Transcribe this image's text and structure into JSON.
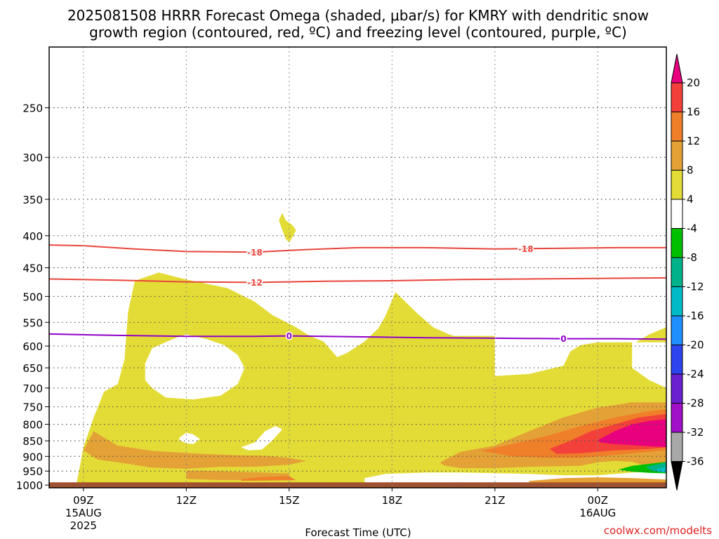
{
  "title": {
    "line1": "2025081508 HRRR Forecast Omega (shaded, μbar/s) for KMRY with dendritic snow",
    "line2": "growth region (contoured, red, ºC) and freezing level (contoured, purple, ºC)"
  },
  "credit": "coolwx.com/modelts",
  "chart_data": {
    "type": "heatmap",
    "title": "2025081508 HRRR Forecast Omega (shaded, μbar/s) for KMRY with dendritic snow growth region (contoured, red, ºC) and freezing level (contoured, purple, ºC)",
    "xlabel": "Forecast Time (UTC)",
    "ylabel": "",
    "x_ticks": [
      {
        "hour": 9,
        "label": "09Z",
        "sub1": "15AUG",
        "sub2": "2025"
      },
      {
        "hour": 12,
        "label": "12Z"
      },
      {
        "hour": 15,
        "label": "15Z"
      },
      {
        "hour": 18,
        "label": "18Z"
      },
      {
        "hour": 21,
        "label": "21Z"
      },
      {
        "hour": 24,
        "label": "00Z",
        "sub1": "16AUG"
      }
    ],
    "xlim": [
      8,
      26
    ],
    "y_ticks": [
      250,
      300,
      350,
      400,
      450,
      500,
      550,
      600,
      650,
      700,
      750,
      800,
      850,
      900,
      950,
      1000
    ],
    "ylim_hpa": [
      200,
      1010
    ],
    "y_scale": "log (pressure, decreasing upward)",
    "grid": true,
    "colorbar": {
      "labels": [
        "20",
        "16",
        "12",
        "8",
        "4",
        "-4",
        "-8",
        "-12",
        "-16",
        "-20",
        "-24",
        "-28",
        "-32",
        "-36"
      ],
      "bins": [
        {
          "range": ">20",
          "color": "#e8007e"
        },
        {
          "range": "16 to 20",
          "color": "#f4403a"
        },
        {
          "range": "12 to 16",
          "color": "#f07f2a"
        },
        {
          "range": "8 to 12",
          "color": "#e4a236"
        },
        {
          "range": "4 to 8",
          "color": "#e4dc36"
        },
        {
          "range": "-4 to 4",
          "color": "#ffffff"
        },
        {
          "range": "-8 to -4",
          "color": "#00c000"
        },
        {
          "range": "-12 to -8",
          "color": "#00b38a"
        },
        {
          "range": "-16 to -12",
          "color": "#00bcc8"
        },
        {
          "range": "-20 to -16",
          "color": "#1e90ff"
        },
        {
          "range": "-24 to -20",
          "color": "#2d44ee"
        },
        {
          "range": "-28 to -24",
          "color": "#6a1fd0"
        },
        {
          "range": "-32 to -28",
          "color": "#a10fc8"
        },
        {
          "range": "-36 to -32",
          "color": "#a8a8a8"
        },
        {
          "range": "<-36",
          "color": "#000000"
        }
      ]
    },
    "contours": [
      {
        "name": "-18",
        "color": "#e8453c",
        "label_text": "-18",
        "points": [
          [
            8.0,
            414
          ],
          [
            9.0,
            415
          ],
          [
            10.5,
            420
          ],
          [
            12.0,
            424
          ],
          [
            14.0,
            425
          ],
          [
            15.5,
            421
          ],
          [
            17.0,
            418
          ],
          [
            19.0,
            418
          ],
          [
            21.0,
            420
          ],
          [
            23.0,
            419
          ],
          [
            24.5,
            418
          ],
          [
            26.0,
            418
          ]
        ],
        "label_hours": [
          14.0,
          21.9
        ]
      },
      {
        "name": "-12",
        "color": "#e8453c",
        "label_text": "-12",
        "points": [
          [
            8.0,
            469
          ],
          [
            10.0,
            471
          ],
          [
            12.0,
            474
          ],
          [
            14.0,
            475
          ],
          [
            16.0,
            473
          ],
          [
            18.0,
            472
          ],
          [
            20.0,
            470
          ],
          [
            22.0,
            469
          ],
          [
            24.0,
            468
          ],
          [
            26.0,
            467
          ]
        ],
        "label_hours": [
          14.0
        ]
      },
      {
        "name": "freezing-level",
        "color": "#9000c8",
        "label_text": "0",
        "points": [
          [
            8.0,
            574
          ],
          [
            10.0,
            577
          ],
          [
            12.0,
            579
          ],
          [
            14.0,
            579
          ],
          [
            15.0,
            578
          ],
          [
            17.0,
            580
          ],
          [
            19.0,
            582
          ],
          [
            21.0,
            583
          ],
          [
            23.0,
            584
          ],
          [
            24.5,
            584
          ],
          [
            26.0,
            585
          ]
        ],
        "label_hours": [
          15.0,
          23.0
        ]
      }
    ],
    "regions": [
      {
        "level": "4 to 8",
        "color": "#e4dc36",
        "points": [
          [
            8.8,
            995
          ],
          [
            9.0,
            870
          ],
          [
            9.3,
            780
          ],
          [
            9.6,
            710
          ],
          [
            10.0,
            690
          ],
          [
            10.2,
            630
          ],
          [
            10.3,
            530
          ],
          [
            10.5,
            472
          ],
          [
            11.2,
            458
          ],
          [
            12.0,
            470
          ],
          [
            13.2,
            485
          ],
          [
            14.0,
            510
          ],
          [
            14.5,
            535
          ],
          [
            15.2,
            560
          ],
          [
            15.6,
            578
          ],
          [
            16.0,
            590
          ],
          [
            16.4,
            625
          ],
          [
            16.7,
            615
          ],
          [
            17.2,
            590
          ],
          [
            17.6,
            562
          ],
          [
            17.8,
            538
          ],
          [
            18.1,
            492
          ],
          [
            18.7,
            530
          ],
          [
            19.2,
            560
          ],
          [
            19.6,
            573
          ],
          [
            19.8,
            578
          ],
          [
            20.0,
            578
          ],
          [
            21.0,
            578
          ],
          [
            21.0,
            670
          ],
          [
            22.0,
            665
          ],
          [
            23.0,
            645
          ],
          [
            23.2,
            612
          ],
          [
            23.5,
            598
          ],
          [
            24.0,
            592
          ],
          [
            25.0,
            592
          ],
          [
            25.0,
            650
          ],
          [
            25.5,
            680
          ],
          [
            26.0,
            700
          ],
          [
            26.0,
            990
          ]
        ]
      },
      {
        "level": "4 to 8",
        "color": "#e4dc36",
        "points": [
          [
            25.1,
            592
          ],
          [
            25.5,
            575
          ],
          [
            26.0,
            560
          ],
          [
            26.0,
            592
          ]
        ]
      },
      {
        "level": "4 to 8",
        "color": "#e4dc36",
        "points": [
          [
            14.8,
            368
          ],
          [
            14.9,
            378
          ],
          [
            15.1,
            385
          ],
          [
            15.2,
            392
          ],
          [
            15.1,
            402
          ],
          [
            15.0,
            410
          ],
          [
            14.9,
            405
          ],
          [
            14.8,
            392
          ],
          [
            14.7,
            378
          ]
        ]
      },
      {
        "level": "-4 to 4",
        "color": "#ffffff",
        "points": [
          [
            10.8,
            640
          ],
          [
            11.0,
            605
          ],
          [
            11.6,
            585
          ],
          [
            12.0,
            575
          ],
          [
            12.6,
            585
          ],
          [
            13.1,
            598
          ],
          [
            13.5,
            620
          ],
          [
            13.7,
            650
          ],
          [
            13.5,
            690
          ],
          [
            13.0,
            720
          ],
          [
            12.2,
            730
          ],
          [
            11.4,
            725
          ],
          [
            11.0,
            700
          ],
          [
            10.8,
            680
          ]
        ]
      },
      {
        "level": "-4 to 4",
        "color": "#ffffff",
        "points": [
          [
            11.8,
            840
          ],
          [
            12.0,
            825
          ],
          [
            12.2,
            830
          ],
          [
            12.4,
            845
          ],
          [
            12.2,
            860
          ],
          [
            12.0,
            858
          ],
          [
            11.8,
            848
          ]
        ]
      },
      {
        "level": "-4 to 4",
        "color": "#ffffff",
        "points": [
          [
            14.0,
            855
          ],
          [
            14.3,
            820
          ],
          [
            14.6,
            805
          ],
          [
            14.8,
            815
          ],
          [
            14.5,
            850
          ],
          [
            14.2,
            878
          ],
          [
            13.8,
            880
          ],
          [
            13.6,
            870
          ]
        ]
      },
      {
        "level": "-4 to 4",
        "color": "#ffffff",
        "points": [
          [
            17.2,
            975
          ],
          [
            17.8,
            960
          ],
          [
            19.0,
            955
          ],
          [
            20.0,
            955
          ],
          [
            22.0,
            960
          ],
          [
            23.0,
            965
          ],
          [
            24.0,
            965
          ],
          [
            25.0,
            955
          ],
          [
            26.0,
            950
          ],
          [
            26.0,
            998
          ],
          [
            17.2,
            998
          ]
        ]
      },
      {
        "level": "8 to 12",
        "color": "#e4a236",
        "points": [
          [
            9.0,
            880
          ],
          [
            9.3,
            820
          ],
          [
            9.6,
            840
          ],
          [
            10.0,
            865
          ],
          [
            11.0,
            882
          ],
          [
            12.5,
            892
          ],
          [
            13.5,
            896
          ],
          [
            14.3,
            898
          ],
          [
            15.0,
            905
          ],
          [
            15.5,
            915
          ],
          [
            15.0,
            928
          ],
          [
            14.0,
            935
          ],
          [
            13.0,
            935
          ],
          [
            12.0,
            942
          ],
          [
            11.0,
            938
          ],
          [
            10.0,
            920
          ],
          [
            9.4,
            910
          ]
        ]
      },
      {
        "level": "8 to 12",
        "color": "#e4a236",
        "points": [
          [
            12.0,
            948
          ],
          [
            13.0,
            950
          ],
          [
            14.0,
            954
          ],
          [
            15.0,
            958
          ],
          [
            15.0,
            976
          ],
          [
            14.0,
            982
          ],
          [
            13.0,
            982
          ],
          [
            12.0,
            978
          ]
        ]
      },
      {
        "level": "8 to 12",
        "color": "#e4a236",
        "points": [
          [
            19.4,
            920
          ],
          [
            20.0,
            885
          ],
          [
            21.0,
            865
          ],
          [
            22.0,
            820
          ],
          [
            23.0,
            780
          ],
          [
            24.0,
            752
          ],
          [
            25.0,
            738
          ],
          [
            26.0,
            738
          ],
          [
            26.0,
            955
          ],
          [
            25.5,
            935
          ],
          [
            25.0,
            918
          ],
          [
            24.5,
            915
          ],
          [
            24.0,
            920
          ],
          [
            23.5,
            932
          ],
          [
            22.0,
            935
          ],
          [
            21.0,
            940
          ],
          [
            20.0,
            940
          ],
          [
            19.5,
            930
          ]
        ]
      },
      {
        "level": "8 to 12",
        "color": "#e4a236",
        "points": [
          [
            22.0,
            985
          ],
          [
            23.0,
            975
          ],
          [
            24.0,
            972
          ],
          [
            25.0,
            975
          ],
          [
            26.0,
            980
          ],
          [
            26.0,
            995
          ],
          [
            22.0,
            995
          ]
        ]
      },
      {
        "level": "12 to 16",
        "color": "#f07f2a",
        "points": [
          [
            20.6,
            882
          ],
          [
            21.5,
            860
          ],
          [
            22.5,
            835
          ],
          [
            23.5,
            805
          ],
          [
            24.5,
            780
          ],
          [
            25.5,
            762
          ],
          [
            26.0,
            757
          ],
          [
            26.0,
            880
          ],
          [
            25.5,
            885
          ],
          [
            24.5,
            895
          ],
          [
            23.5,
            905
          ],
          [
            22.5,
            905
          ],
          [
            21.5,
            900
          ]
        ]
      },
      {
        "level": "12 to 16",
        "color": "#f07f2a",
        "points": [
          [
            13.6,
            978
          ],
          [
            14.3,
            970
          ],
          [
            15.0,
            968
          ],
          [
            15.2,
            982
          ],
          [
            13.6,
            985
          ]
        ]
      },
      {
        "level": "16 to 20",
        "color": "#f4403a",
        "points": [
          [
            22.6,
            875
          ],
          [
            23.2,
            850
          ],
          [
            23.8,
            820
          ],
          [
            24.5,
            800
          ],
          [
            25.2,
            780
          ],
          [
            26.0,
            770
          ],
          [
            26.0,
            870
          ],
          [
            25.5,
            876
          ],
          [
            24.5,
            880
          ],
          [
            23.5,
            890
          ],
          [
            22.8,
            892
          ]
        ]
      },
      {
        "level": ">20",
        "color": "#e8007e",
        "points": [
          [
            24.0,
            848
          ],
          [
            24.5,
            820
          ],
          [
            25.0,
            800
          ],
          [
            25.5,
            790
          ],
          [
            26.0,
            785
          ],
          [
            26.0,
            870
          ],
          [
            25.5,
            867
          ],
          [
            24.5,
            860
          ],
          [
            24.1,
            856
          ]
        ]
      },
      {
        "level": "-4 to -8",
        "color": "#00c000",
        "points": [
          [
            24.6,
            945
          ],
          [
            25.0,
            932
          ],
          [
            25.5,
            925
          ],
          [
            26.0,
            918
          ],
          [
            26.0,
            958
          ],
          [
            25.5,
            956
          ],
          [
            25.0,
            952
          ]
        ]
      },
      {
        "level": "-8 to -12",
        "color": "#00b38a",
        "points": [
          [
            25.4,
            935
          ],
          [
            25.8,
            925
          ],
          [
            26.0,
            920
          ],
          [
            26.0,
            955
          ],
          [
            25.6,
            950
          ]
        ]
      },
      {
        "level": "-12 to -16",
        "color": "#00bcc8",
        "points": [
          [
            25.7,
            945
          ],
          [
            26.0,
            935
          ],
          [
            26.0,
            955
          ],
          [
            25.8,
            953
          ]
        ]
      }
    ],
    "ground": {
      "color": "#a4522e",
      "from_hpa": 990
    }
  }
}
